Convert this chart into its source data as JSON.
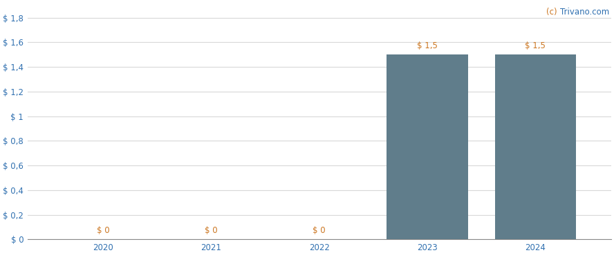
{
  "categories": [
    2020,
    2021,
    2022,
    2023,
    2024
  ],
  "values": [
    0,
    0,
    0,
    1.5,
    1.5
  ],
  "bar_color": "#607d8b",
  "bar_labels": [
    "$ 0",
    "$ 0",
    "$ 0",
    "$ 1,5",
    "$ 1,5"
  ],
  "yticks": [
    0,
    0.2,
    0.4,
    0.6,
    0.8,
    1.0,
    1.2,
    1.4,
    1.6,
    1.8
  ],
  "ytick_labels": [
    "$ 0",
    "$ 0,2",
    "$ 0,4",
    "$ 0,6",
    "$ 0,8",
    "$ 1",
    "$ 1,2",
    "$ 1,4",
    "$ 1,6",
    "$ 1,8"
  ],
  "ylim": [
    0,
    1.92
  ],
  "background_color": "#ffffff",
  "grid_color": "#d8d8d8",
  "bar_label_color": "#cc7722",
  "tick_label_color": "#3070b0",
  "bar_width": 0.75,
  "watermark_c_color": "#cc7722",
  "watermark_text_color": "#3070b0",
  "label_fontsize": 8.5,
  "tick_fontsize": 8.5
}
